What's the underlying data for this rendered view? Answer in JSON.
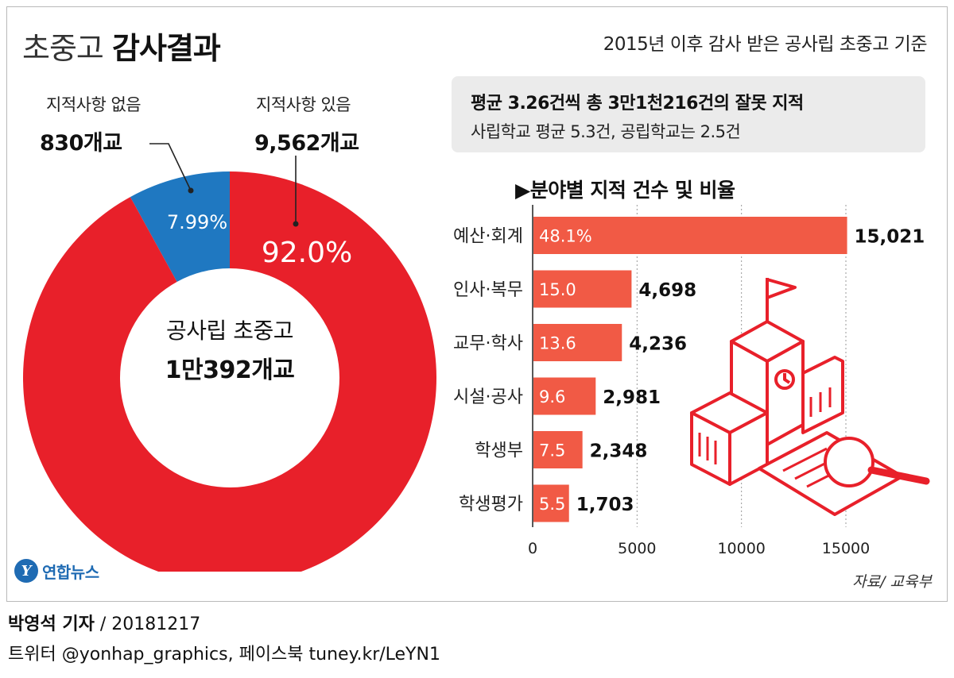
{
  "header": {
    "title_light": "초중고",
    "title_bold": "감사결과",
    "subtitle": "2015년 이후 감사 받은 공사립 초중고 기준"
  },
  "summary": {
    "line1": "평균 3.26건씩 총 3만1천216건의 잘못 지적",
    "line2": "사립학교 평균 5.3건, 공립학교는 2.5건"
  },
  "donut": {
    "none_label": "지적사항 없음",
    "none_value": "830개교",
    "some_label": "지적사항 있음",
    "some_value": "9,562개교",
    "center_line1": "공사립 초중고",
    "center_line2": "1만392개교"
  },
  "bar_heading": "▶분야별 지적 건수 및 비율",
  "source": "자료/ 교육부",
  "logo_text": "연합뉴스",
  "footer": {
    "author": "박영석 기자",
    "date": " / 20181217",
    "sns": "트위터 @yonhap_graphics, 페이스북 tuney.kr/LeYN1"
  },
  "colors": {
    "red": "#e8202a",
    "blue": "#1f78c1",
    "bar": "#f15a45"
  },
  "chart_data": [
    {
      "type": "pie",
      "categories": [
        "지적사항 있음",
        "지적사항 없음"
      ],
      "values": [
        92.0,
        7.99
      ],
      "labels": [
        "92.0%",
        "7.99%"
      ],
      "counts": [
        9562,
        830
      ]
    },
    {
      "type": "bar",
      "categories": [
        "예산·회계",
        "인사·복무",
        "교무·학사",
        "시설·공사",
        "학생부",
        "학생평가"
      ],
      "values": [
        15021,
        4698,
        4236,
        2981,
        2348,
        1703
      ],
      "value_labels": [
        "15,021",
        "4,698",
        "4,236",
        "2,981",
        "2,348",
        "1,703"
      ],
      "percent_labels": [
        "48.1%",
        "15.0",
        "13.6",
        "9.6",
        "7.5",
        "5.5"
      ],
      "xlim": [
        0,
        19000
      ],
      "xticks": [
        0,
        5000,
        10000,
        15000
      ],
      "grid": true
    }
  ]
}
